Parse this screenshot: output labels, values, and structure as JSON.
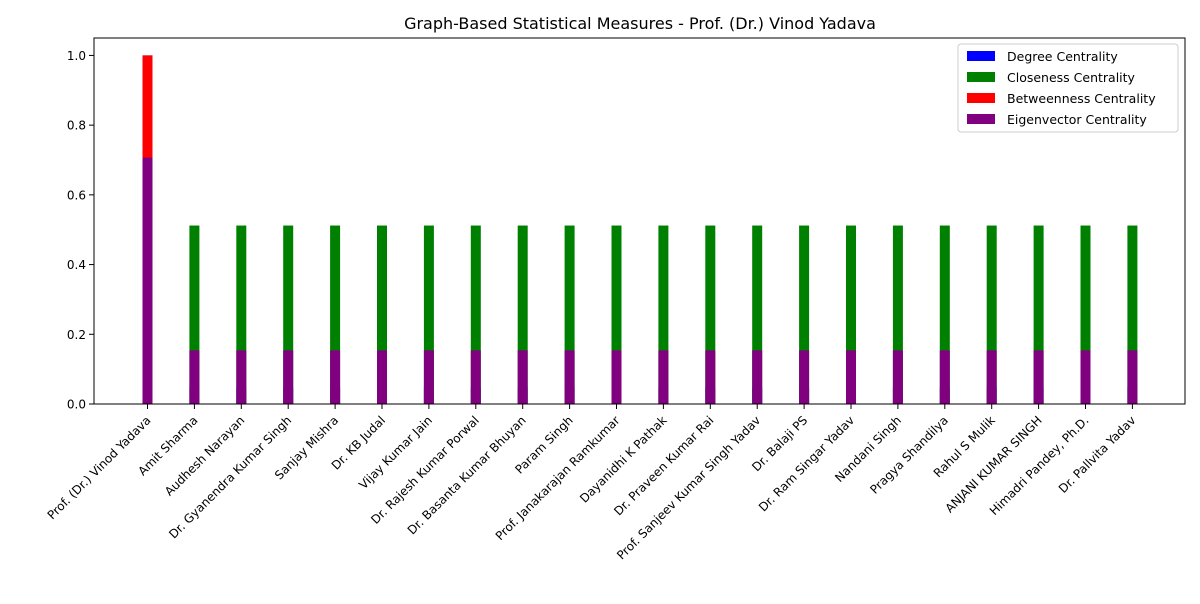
{
  "chart_data": {
    "type": "bar",
    "title": "Graph-Based Statistical Measures - Prof. (Dr.) Vinod Yadava",
    "xlabel": "",
    "ylabel": "",
    "ylim": [
      0,
      1.05
    ],
    "yticks": [
      0.0,
      0.2,
      0.4,
      0.6,
      0.8,
      1.0
    ],
    "ytick_labels": [
      "0.0",
      "0.2",
      "0.4",
      "0.6",
      "0.8",
      "1.0"
    ],
    "legend_position": "top-right",
    "grid": false,
    "categories": [
      "Prof. (Dr.) Vinod Yadava",
      "Amit Sharma",
      "Audhesh Narayan",
      "Dr. Gyanendra Kumar Singh",
      "Sanjay Mishra",
      "Dr. KB Judal",
      "Vijay Kumar Jain",
      "Dr. Rajesh Kumar Porwal",
      "Dr. Basanta Kumar Bhuyan",
      "Param Singh",
      "Prof. Janakarajan Ramkumar",
      "Dayanidhi K Pathak",
      "Dr. Praveen Kumar Rai",
      "Prof. Sanjeev Kumar Singh Yadav",
      "Dr. Balaji PS",
      "Dr. Ram Singar Yadav",
      "Nandani Singh",
      "Pragya Shandilya",
      "Rahul S Mulik",
      "ANJANI KUMAR SINGH",
      "Himadri Pandey, Ph.D.",
      "Dr. Pallvita Yadav"
    ],
    "series": [
      {
        "name": "Degree Centrality",
        "color": "#0000ff",
        "values": [
          1.0,
          0.0476,
          0.0476,
          0.0476,
          0.0476,
          0.0476,
          0.0476,
          0.0476,
          0.0476,
          0.0476,
          0.0476,
          0.0476,
          0.0476,
          0.0476,
          0.0476,
          0.0476,
          0.0476,
          0.0476,
          0.0476,
          0.0476,
          0.0476,
          0.0476
        ]
      },
      {
        "name": "Closeness Centrality",
        "color": "#008000",
        "values": [
          1.0,
          0.512,
          0.512,
          0.512,
          0.512,
          0.512,
          0.512,
          0.512,
          0.512,
          0.512,
          0.512,
          0.512,
          0.512,
          0.512,
          0.512,
          0.512,
          0.512,
          0.512,
          0.512,
          0.512,
          0.512,
          0.512
        ]
      },
      {
        "name": "Betweenness Centrality",
        "color": "#ff0000",
        "values": [
          1.0,
          0.0,
          0.0,
          0.0,
          0.0,
          0.0,
          0.0,
          0.0,
          0.0,
          0.0,
          0.0,
          0.0,
          0.0,
          0.0,
          0.0,
          0.0,
          0.0,
          0.0,
          0.0,
          0.0,
          0.0,
          0.0
        ]
      },
      {
        "name": "Eigenvector Centrality",
        "color": "#800080",
        "values": [
          0.707,
          0.154,
          0.154,
          0.154,
          0.154,
          0.154,
          0.154,
          0.154,
          0.154,
          0.154,
          0.154,
          0.154,
          0.154,
          0.154,
          0.154,
          0.154,
          0.154,
          0.154,
          0.154,
          0.154,
          0.154,
          0.154
        ]
      }
    ]
  }
}
